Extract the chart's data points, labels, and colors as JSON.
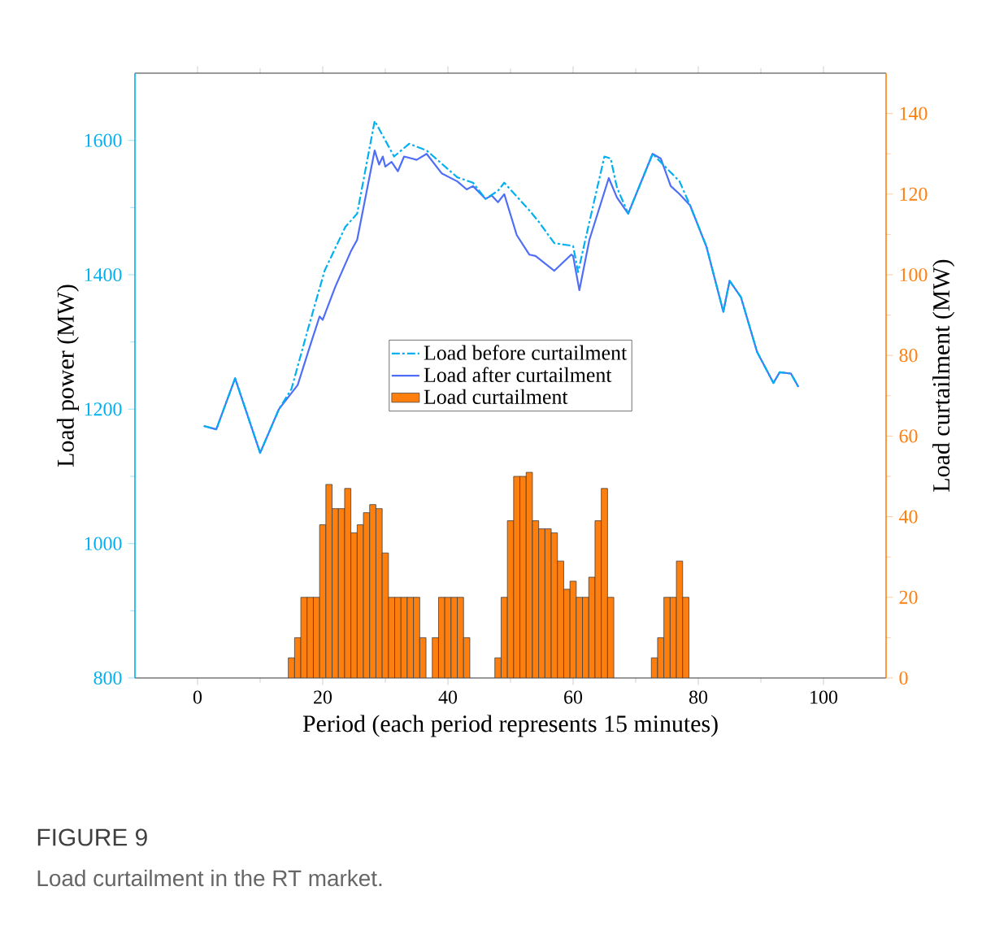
{
  "chart_data": {
    "type": "line",
    "xlabel": "Period (each period  represents 15 minutes)",
    "ylabel": "Load power (MW)",
    "y2label": "Load  curtailment (MW)",
    "annotations": [
      "FIGURE 9",
      "Load curtailment in the RT market."
    ],
    "xlim": [
      -10,
      110
    ],
    "xticks": [
      0,
      20,
      40,
      60,
      80,
      100
    ],
    "ylim": [
      800,
      1700
    ],
    "yticks": [
      800,
      1000,
      1200,
      1400,
      1600
    ],
    "y2lim": [
      0,
      150
    ],
    "y2ticks": [
      0,
      20,
      40,
      60,
      80,
      100,
      120,
      140
    ],
    "legend": "center",
    "grid": false,
    "marker": "none",
    "series": [
      {
        "name": "Load before curtailment",
        "color": "#00b0f0",
        "line_style": "dashdot",
        "x": [
          1,
          3,
          6,
          10,
          13,
          15,
          17.7,
          20.3,
          23.6,
          25.5,
          28.3,
          29.3,
          31.4,
          33.8,
          36.6,
          41.5,
          44,
          46,
          48,
          49,
          53,
          54.5,
          57,
          60,
          60.8,
          62,
          65,
          66,
          67,
          68.8,
          72.7,
          77,
          78.7,
          81.3,
          84,
          85,
          86.8,
          89.4,
          92,
          93,
          94.8,
          96
        ],
        "values": [
          1175,
          1170,
          1246,
          1135,
          1200,
          1230,
          1321,
          1406,
          1471,
          1491,
          1629,
          1612,
          1576,
          1595,
          1585,
          1545,
          1537,
          1513,
          1525,
          1537,
          1496,
          1479,
          1447,
          1443,
          1404,
          1454,
          1576,
          1573,
          1530,
          1491,
          1580,
          1539,
          1503,
          1442,
          1345,
          1391,
          1367,
          1285,
          1239,
          1255,
          1253,
          1233
        ]
      },
      {
        "name": "Load after curtailment",
        "color": "#4f6ef7",
        "line_style": "solid",
        "x": [
          1,
          3,
          6,
          10,
          13,
          16,
          18,
          19.5,
          20,
          22,
          24.5,
          25.5,
          28.3,
          29,
          29.6,
          30,
          31,
          32,
          33,
          35,
          36.6,
          39,
          41.5,
          43,
          44,
          46,
          47,
          48,
          49,
          51,
          53,
          54,
          57,
          59.7,
          60,
          61,
          62.6,
          65.7,
          67,
          68.8,
          72.7,
          74,
          75.6,
          77,
          78.7,
          81.3,
          84,
          85,
          86.8,
          89.4,
          92,
          93,
          94.8,
          96
        ],
        "values": [
          1175,
          1170,
          1246,
          1135,
          1200,
          1236,
          1295,
          1338,
          1333,
          1382,
          1435,
          1452,
          1585,
          1564,
          1576,
          1561,
          1568,
          1554,
          1576,
          1571,
          1580,
          1551,
          1539,
          1527,
          1532,
          1513,
          1518,
          1508,
          1520,
          1459,
          1430,
          1428,
          1406,
          1430,
          1428,
          1377,
          1452,
          1544,
          1515,
          1491,
          1580,
          1573,
          1532,
          1520,
          1503,
          1442,
          1345,
          1391,
          1367,
          1285,
          1239,
          1255,
          1253,
          1233
        ]
      },
      {
        "name": "Load  curtailment",
        "type": "bar",
        "axis": "y2",
        "color": "#ff7f0e",
        "x": [
          15,
          16,
          17,
          18,
          19,
          20,
          21,
          22,
          23,
          24,
          25,
          26,
          27,
          28,
          29,
          30,
          31,
          32,
          33,
          34,
          35,
          36,
          38,
          39,
          40,
          41,
          42,
          43,
          48,
          49,
          50,
          51,
          52,
          53,
          54,
          55,
          56,
          57,
          58,
          59,
          60,
          61,
          62,
          63,
          64,
          65,
          66,
          73,
          74,
          75,
          76,
          77,
          78
        ],
        "values": [
          5,
          10,
          20,
          20,
          20,
          38,
          48,
          42,
          42,
          47,
          36,
          38,
          41,
          43,
          42,
          31,
          20,
          20,
          20,
          20,
          20,
          10,
          10,
          20,
          20,
          20,
          20,
          10,
          5,
          20,
          39,
          50,
          50,
          51,
          39,
          37,
          37,
          36,
          29,
          22,
          24,
          20,
          20,
          25,
          39,
          47,
          20,
          5,
          10,
          20,
          20,
          29,
          20
        ]
      }
    ]
  }
}
